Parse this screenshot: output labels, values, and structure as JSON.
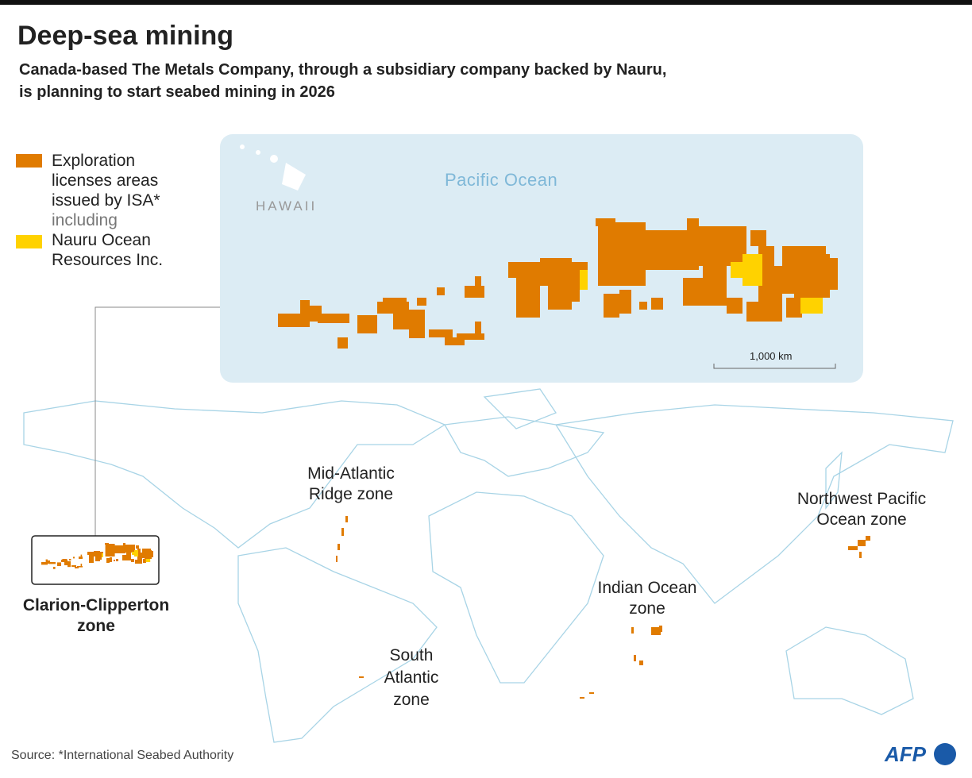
{
  "header": {
    "title": "Deep-sea mining",
    "subtitle_lines": [
      "Canada-based The Metals Company, through a subsidiary company backed by Nauru,",
      "is planning to start seabed mining in 2026"
    ]
  },
  "legend": {
    "items": [
      {
        "label_lines": [
          "Exploration",
          "licenses areas",
          "issued by ISA*"
        ],
        "color": "#e07b00"
      },
      {
        "label_lines": [
          "Nauru Ocean",
          "Resources Inc."
        ],
        "color": "#ffd200"
      }
    ],
    "connector": "including"
  },
  "inset": {
    "ocean_label": "Pacific Ocean",
    "island_label": "HAWAII",
    "scale_label": "1,000 km"
  },
  "zones": [
    {
      "label_lines": [
        "Clarion-Clipperton",
        "zone"
      ]
    },
    {
      "label_lines": [
        "Mid-Atlantic",
        "Ridge zone"
      ]
    },
    {
      "label_lines": [
        "Northwest Pacific",
        "Ocean zone"
      ]
    },
    {
      "label_lines": [
        "Indian Ocean",
        "zone"
      ]
    },
    {
      "label_lines": [
        "South",
        "Atlantic",
        "zone"
      ]
    }
  ],
  "source": "Source: *International Seabed Authority",
  "logo": "AFP"
}
